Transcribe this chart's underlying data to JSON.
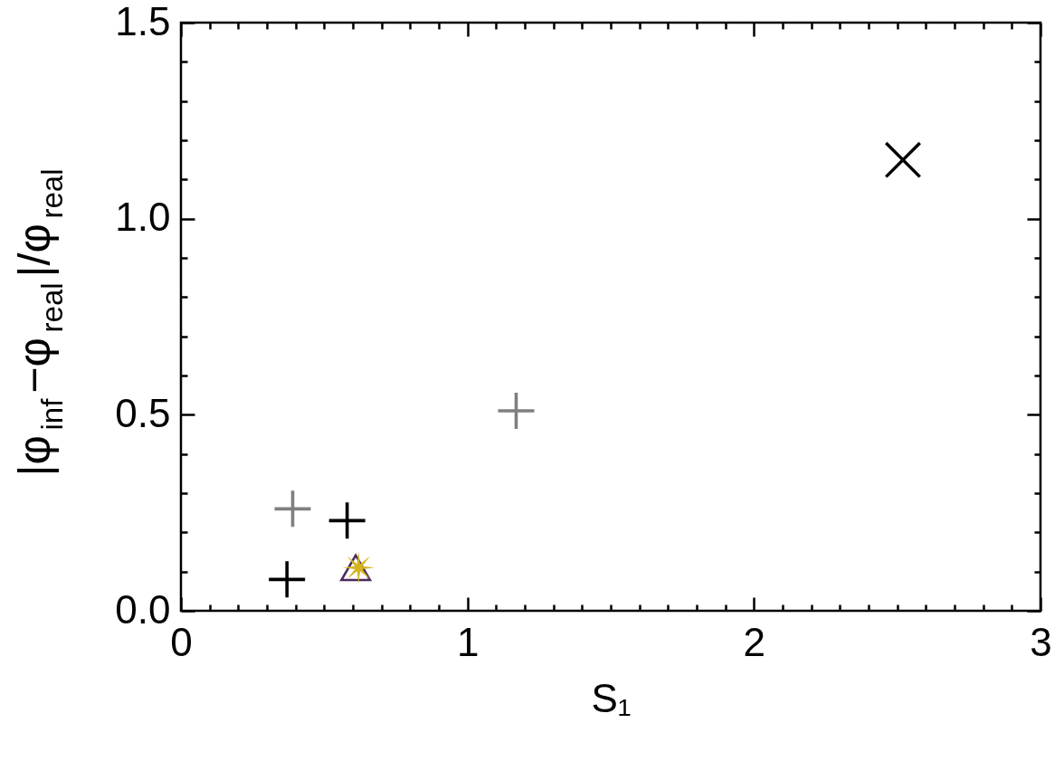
{
  "chart_data": {
    "type": "scatter",
    "xlabel": "S₁",
    "ylabel": "|φ$_{inf}$−φ$_{real}$|/φ$_{real}$",
    "xlim": [
      0,
      3
    ],
    "ylim": [
      0,
      1.5
    ],
    "xticks": [
      0,
      {
        "value": 0.1,
        "label": null
      },
      {
        "value": 0.2,
        "label": null
      },
      {
        "value": 0.3,
        "label": null
      },
      {
        "value": 0.4,
        "label": null
      },
      {
        "value": 0.5,
        "label": null
      },
      {
        "value": 0.6,
        "label": null
      },
      {
        "value": 0.7,
        "label": null
      },
      {
        "value": 0.8,
        "label": null
      },
      {
        "value": 0.9,
        "label": null
      },
      1,
      {
        "value": 1.1,
        "label": null
      },
      {
        "value": 1.2,
        "label": null
      },
      {
        "value": 1.3,
        "label": null
      },
      {
        "value": 1.4,
        "label": null
      },
      {
        "value": 1.5,
        "label": null
      },
      {
        "value": 1.6,
        "label": null
      },
      {
        "value": 1.7,
        "label": null
      },
      {
        "value": 1.8,
        "label": null
      },
      {
        "value": 1.9,
        "label": null
      },
      2,
      {
        "value": 2.1,
        "label": null
      },
      {
        "value": 2.2,
        "label": null
      },
      {
        "value": 2.3,
        "label": null
      },
      {
        "value": 2.4,
        "label": null
      },
      {
        "value": 2.5,
        "label": null
      },
      {
        "value": 2.6,
        "label": null
      },
      {
        "value": 2.7,
        "label": null
      },
      {
        "value": 2.8,
        "label": null
      },
      {
        "value": 2.9,
        "label": null
      },
      3
    ],
    "yticks": [
      {
        "value": 0,
        "label": "0.0"
      },
      {
        "value": 0.1,
        "label": null
      },
      {
        "value": 0.2,
        "label": null
      },
      {
        "value": 0.3,
        "label": null
      },
      {
        "value": 0.4,
        "label": null
      },
      0.5,
      {
        "value": 0.6,
        "label": null
      },
      {
        "value": 0.7,
        "label": null
      },
      {
        "value": 0.8,
        "label": null
      },
      {
        "value": 0.9,
        "label": null
      },
      {
        "value": 1,
        "label": "1.0"
      },
      {
        "value": 1.1,
        "label": null
      },
      {
        "value": 1.2,
        "label": null
      },
      {
        "value": 1.3,
        "label": null
      },
      {
        "value": 1.4,
        "label": null
      },
      1.5
    ],
    "series": [
      {
        "marker": "cross",
        "color": "#7f7f7f",
        "x": [
          0.39,
          1.17
        ],
        "values": [
          0.26,
          0.51
        ]
      },
      {
        "marker": "cross",
        "color": "#000000",
        "x": [
          0.37,
          0.58
        ],
        "values": [
          0.08,
          0.23
        ]
      },
      {
        "marker": "x",
        "color": "#000000",
        "x": [
          2.52
        ],
        "values": [
          1.15
        ]
      },
      {
        "marker": "triangle",
        "color": "#4a2a5e",
        "x": [
          0.61
        ],
        "values": [
          0.11
        ]
      },
      {
        "marker": "star",
        "color": "#d4b41c",
        "x": [
          0.62
        ],
        "values": [
          0.11
        ]
      }
    ]
  }
}
